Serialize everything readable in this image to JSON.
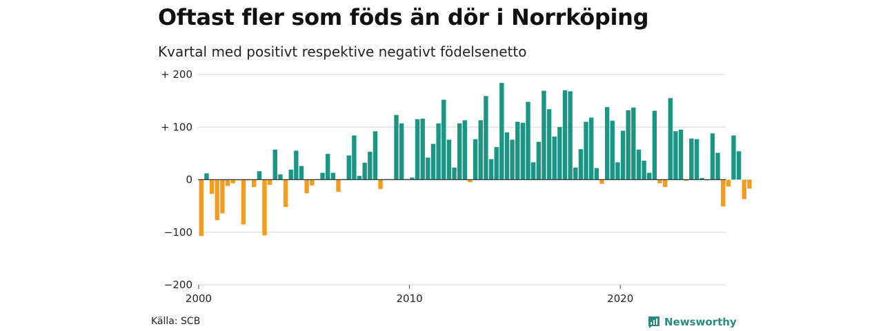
{
  "title": "Oftast fler som föds än dör i Norrköping",
  "subtitle": "Kvartal med positivt respektive negativt födelsenetto",
  "source": "Källa: SCB",
  "brand": {
    "name": "Newsworthy",
    "icon": "newsworthy-logo-icon"
  },
  "colors": {
    "positive": "#1b9584",
    "negative": "#f39c1d",
    "grid": "#dddddd",
    "zero": "#333333"
  },
  "chart_data": {
    "type": "bar",
    "x_start": "2000",
    "frequency": "quarterly",
    "xticks": [
      "2000",
      "2010",
      "2020"
    ],
    "yticks": [
      200,
      100,
      0,
      -100,
      -200
    ],
    "ytick_labels": [
      "+ 200",
      "+ 100",
      "0",
      "−100",
      "−200"
    ],
    "ylim": [
      -200,
      200
    ],
    "grid": true,
    "legend": "none",
    "values": [
      -107,
      12,
      -27,
      -77,
      -64,
      -12,
      -7,
      -1,
      -85,
      -1,
      -14,
      16,
      -106,
      -10,
      57,
      10,
      -52,
      19,
      55,
      26,
      -26,
      -11,
      1,
      13,
      49,
      13,
      -23,
      1,
      46,
      84,
      7,
      32,
      53,
      92,
      -18,
      1,
      1,
      123,
      107,
      1,
      4,
      115,
      116,
      42,
      68,
      107,
      152,
      76,
      23,
      107,
      113,
      -5,
      77,
      113,
      159,
      39,
      62,
      184,
      90,
      76,
      110,
      108,
      148,
      33,
      72,
      169,
      134,
      82,
      100,
      170,
      168,
      23,
      58,
      110,
      118,
      22,
      -8,
      138,
      112,
      33,
      93,
      132,
      137,
      57,
      36,
      13,
      131,
      -7,
      -14,
      155,
      92,
      95,
      -2,
      78,
      77,
      3,
      -1,
      88,
      51,
      -51,
      -13,
      84,
      54,
      -37,
      -17
    ]
  }
}
